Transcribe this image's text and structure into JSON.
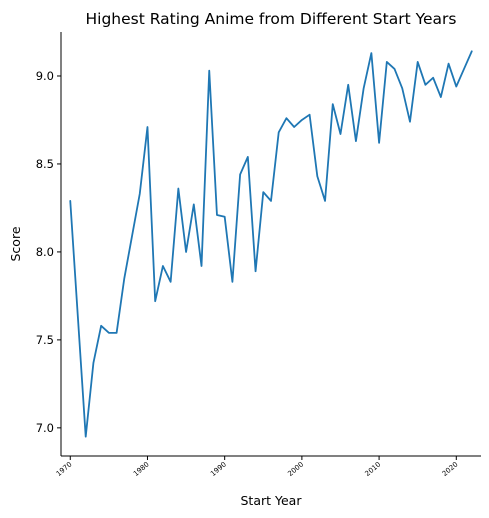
{
  "chart_data": {
    "type": "line",
    "title": "Highest Rating Anime from Different Start Years",
    "xlabel": "Start Year",
    "ylabel": "Score",
    "xlim": [
      1968.8,
      2023.2
    ],
    "ylim": [
      6.84,
      9.25
    ],
    "xticks": [
      1970,
      1980,
      1990,
      2000,
      2010,
      2020
    ],
    "xtick_labels": [
      "1970",
      "1980",
      "1990",
      "2000",
      "2010",
      "2020"
    ],
    "yticks": [
      7.0,
      7.5,
      8.0,
      8.5,
      9.0
    ],
    "ytick_labels": [
      "7.0",
      "7.5",
      "8.0",
      "8.5",
      "9.0"
    ],
    "grid": false,
    "color": "#1f77b4",
    "x": [
      1970,
      1971,
      1972,
      1973,
      1974,
      1975,
      1976,
      1977,
      1978,
      1979,
      1980,
      1981,
      1982,
      1983,
      1984,
      1985,
      1986,
      1987,
      1988,
      1989,
      1990,
      1991,
      1992,
      1993,
      1994,
      1995,
      1996,
      1997,
      1998,
      1999,
      2000,
      2001,
      2002,
      2003,
      2004,
      2005,
      2006,
      2007,
      2008,
      2009,
      2010,
      2011,
      2012,
      2013,
      2014,
      2015,
      2016,
      2017,
      2018,
      2019,
      2020,
      2021,
      2022
    ],
    "y": [
      8.29,
      7.62,
      6.95,
      7.37,
      7.58,
      7.54,
      7.54,
      7.85,
      8.09,
      8.33,
      8.71,
      7.72,
      7.92,
      7.83,
      8.36,
      8.0,
      8.27,
      7.92,
      9.03,
      8.21,
      8.2,
      7.83,
      8.44,
      8.54,
      7.89,
      8.34,
      8.29,
      8.68,
      8.76,
      8.71,
      8.75,
      8.78,
      8.43,
      8.29,
      8.84,
      8.67,
      8.95,
      8.63,
      8.93,
      9.13,
      8.62,
      9.08,
      9.04,
      8.93,
      8.74,
      9.08,
      8.95,
      8.99,
      8.88,
      9.07,
      8.94,
      9.04,
      9.14
    ]
  }
}
